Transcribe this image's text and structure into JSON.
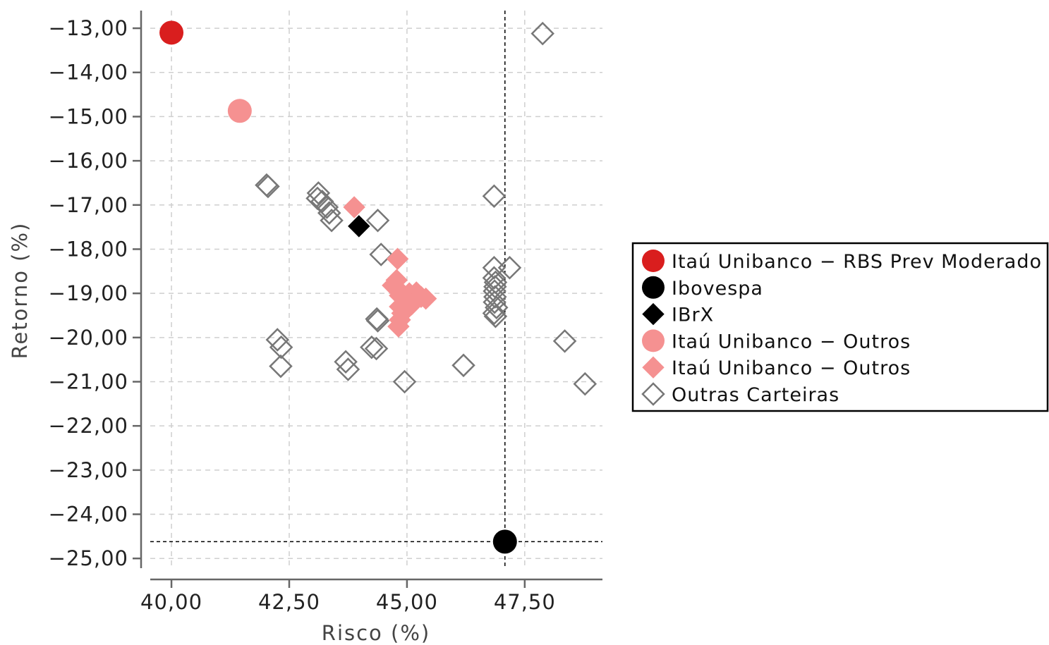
{
  "chart_data": {
    "type": "scatter",
    "xlabel": "Risco (%)",
    "ylabel": "Retorno (%)",
    "xlim": [
      39.55,
      49.15
    ],
    "ylim": [
      -25.22,
      -12.6
    ],
    "x_ticks": [
      {
        "value": 40.0,
        "label": "40,00"
      },
      {
        "value": 42.5,
        "label": "42,50"
      },
      {
        "value": 45.0,
        "label": "45,00"
      },
      {
        "value": 47.5,
        "label": "47,50"
      }
    ],
    "y_ticks": [
      {
        "value": -13,
        "label": "−13,00"
      },
      {
        "value": -14,
        "label": "−14,00"
      },
      {
        "value": -15,
        "label": "−15,00"
      },
      {
        "value": -16,
        "label": "−16,00"
      },
      {
        "value": -17,
        "label": "−17,00"
      },
      {
        "value": -18,
        "label": "−18,00"
      },
      {
        "value": -19,
        "label": "−19,00"
      },
      {
        "value": -20,
        "label": "−20,00"
      },
      {
        "value": -21,
        "label": "−21,00"
      },
      {
        "value": -22,
        "label": "−22,00"
      },
      {
        "value": -23,
        "label": "−23,00"
      },
      {
        "value": -24,
        "label": "−24,00"
      },
      {
        "value": -25,
        "label": "−25,00"
      }
    ],
    "grid": true,
    "reference_lines": {
      "x": 47.08,
      "y": -24.62
    },
    "legend_position": "right",
    "series": [
      {
        "name": "Itaú Unibanco − RBS Prev Moderado",
        "marker": "circle",
        "color": "#d91e1e",
        "filled": true,
        "points": [
          [
            40.0,
            -13.1
          ]
        ]
      },
      {
        "name": "Ibovespa",
        "marker": "circle",
        "color": "#000000",
        "filled": true,
        "points": [
          [
            47.08,
            -24.62
          ]
        ]
      },
      {
        "name": "IBrX",
        "marker": "diamond",
        "color": "#000000",
        "filled": true,
        "points": [
          [
            43.98,
            -17.48
          ]
        ]
      },
      {
        "name": "Itaú Unibanco − Outros",
        "marker": "circle",
        "color": "#f59191",
        "filled": true,
        "points": [
          [
            41.45,
            -14.87
          ]
        ]
      },
      {
        "name": "Itaú Unibanco − Outros",
        "marker": "diamond",
        "color": "#f59191",
        "filled": true,
        "points": [
          [
            43.88,
            -17.05
          ],
          [
            44.8,
            -18.22
          ],
          [
            44.78,
            -18.7
          ],
          [
            44.8,
            -18.9
          ],
          [
            44.85,
            -19.05
          ],
          [
            44.95,
            -19.2
          ],
          [
            45.05,
            -19.0
          ],
          [
            45.2,
            -18.98
          ],
          [
            45.3,
            -19.08
          ],
          [
            45.4,
            -19.12
          ],
          [
            44.85,
            -19.3
          ],
          [
            45.0,
            -19.35
          ],
          [
            44.9,
            -19.45
          ],
          [
            44.85,
            -19.6
          ],
          [
            44.82,
            -19.75
          ],
          [
            45.1,
            -19.25
          ],
          [
            44.7,
            -18.82
          ]
        ]
      },
      {
        "name": "Outras Carteiras",
        "marker": "diamond",
        "color": "#777777",
        "filled": false,
        "points": [
          [
            47.88,
            -13.12
          ],
          [
            42.02,
            -16.55
          ],
          [
            42.05,
            -16.58
          ],
          [
            43.12,
            -16.73
          ],
          [
            43.1,
            -16.85
          ],
          [
            43.2,
            -16.92
          ],
          [
            43.3,
            -17.05
          ],
          [
            43.35,
            -17.18
          ],
          [
            43.4,
            -17.35
          ],
          [
            44.38,
            -17.35
          ],
          [
            44.45,
            -18.12
          ],
          [
            46.85,
            -16.8
          ],
          [
            46.85,
            -18.42
          ],
          [
            47.18,
            -18.42
          ],
          [
            46.85,
            -18.65
          ],
          [
            46.88,
            -18.75
          ],
          [
            46.87,
            -18.85
          ],
          [
            46.86,
            -18.95
          ],
          [
            46.87,
            -19.08
          ],
          [
            46.86,
            -19.2
          ],
          [
            46.9,
            -19.32
          ],
          [
            46.85,
            -19.45
          ],
          [
            46.88,
            -19.52
          ],
          [
            44.36,
            -19.58
          ],
          [
            44.38,
            -19.62
          ],
          [
            42.25,
            -20.05
          ],
          [
            42.33,
            -20.22
          ],
          [
            44.25,
            -20.22
          ],
          [
            44.35,
            -20.25
          ],
          [
            48.35,
            -20.08
          ],
          [
            42.32,
            -20.65
          ],
          [
            43.7,
            -20.55
          ],
          [
            43.75,
            -20.72
          ],
          [
            46.2,
            -20.63
          ],
          [
            44.95,
            -21.0
          ],
          [
            48.78,
            -21.05
          ]
        ]
      }
    ]
  }
}
